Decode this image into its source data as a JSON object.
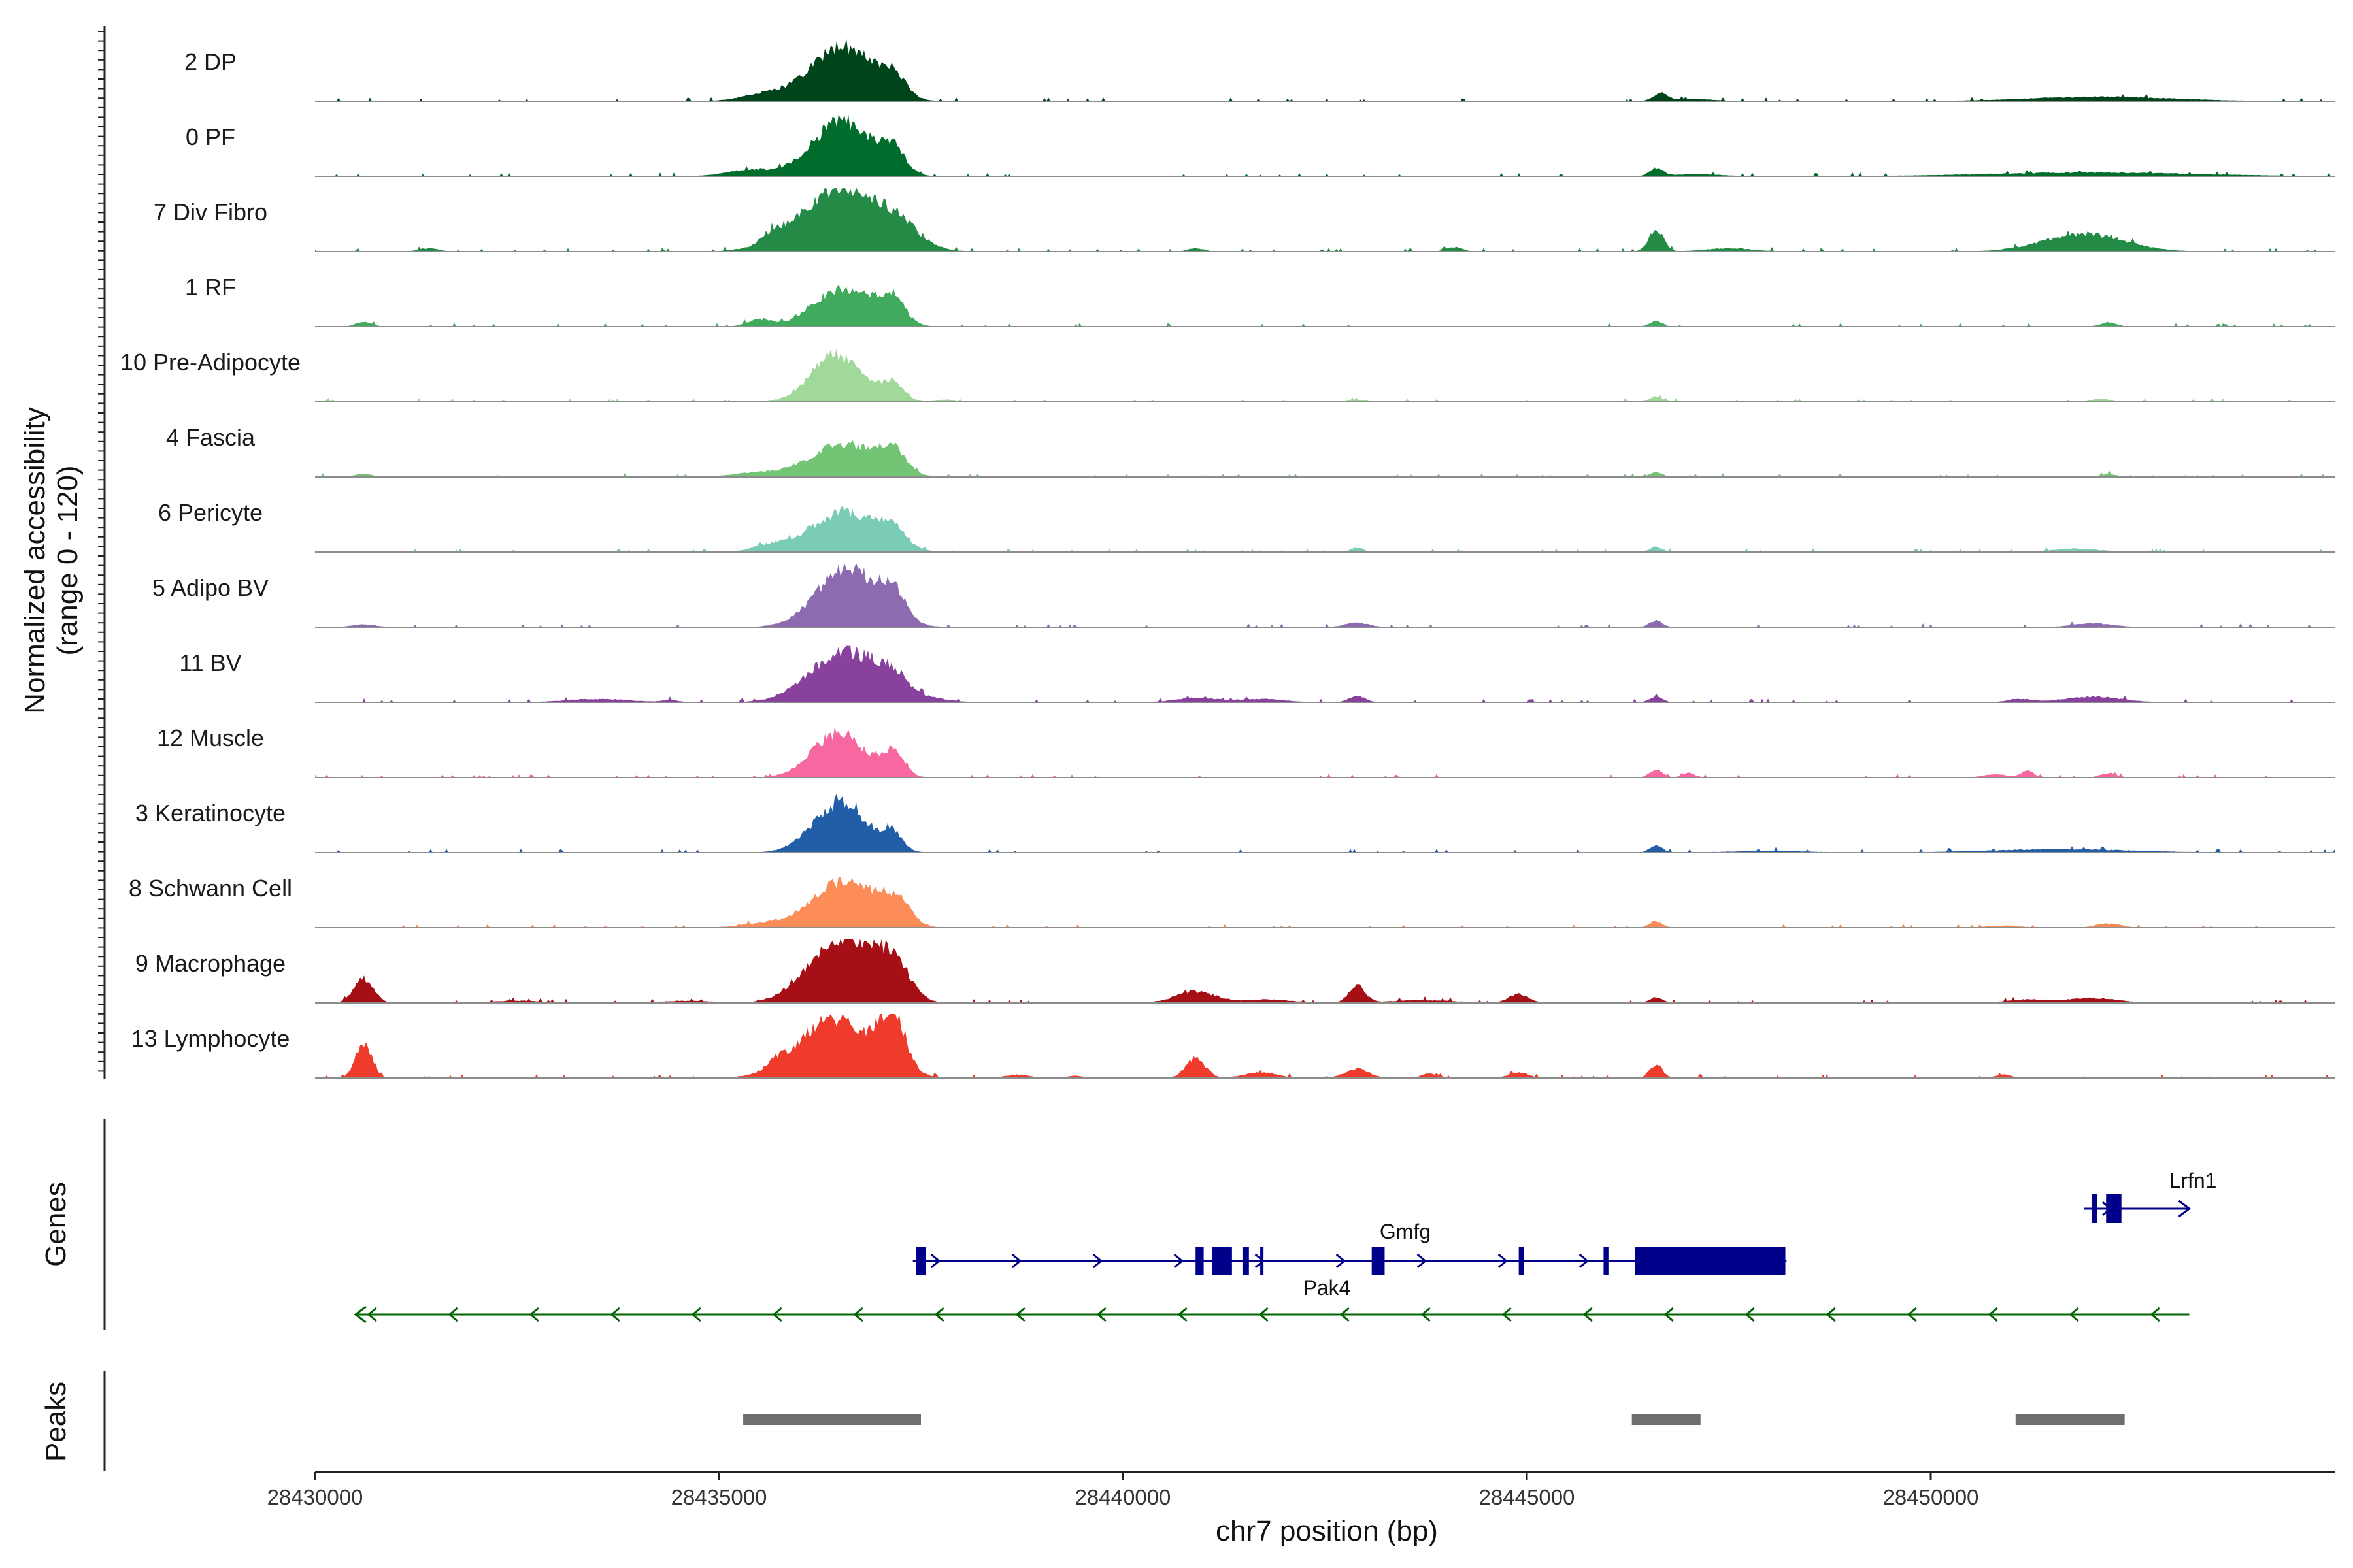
{
  "chart_data": {
    "type": "area",
    "chromosome": "chr7",
    "xlabel": "chr7 position (bp)",
    "ylabel_line1": "Normalized accessibility",
    "ylabel_line2": "(range 0 - 120)",
    "ylim": [
      0,
      120
    ],
    "xlim": [
      28430000,
      28455000
    ],
    "xticks": [
      28430000,
      28435000,
      28440000,
      28445000,
      28450000
    ],
    "xtick_labels": [
      "28430000",
      "28435000",
      "28440000",
      "28445000",
      "28450000"
    ],
    "tracks": [
      {
        "name": "2 DP",
        "color": "#00441B",
        "peaks": [
          [
            28436530,
            100,
            380
          ],
          [
            28437150,
            38,
            150
          ],
          [
            28435600,
            14,
            300
          ],
          [
            28446650,
            14,
            80
          ],
          [
            28452100,
            8,
            900
          ],
          [
            28447000,
            4,
            300
          ]
        ]
      },
      {
        "name": "0 PF",
        "color": "#006D2C",
        "peaks": [
          [
            28436520,
            100,
            360
          ],
          [
            28437150,
            42,
            150
          ],
          [
            28435400,
            12,
            300
          ],
          [
            28446600,
            14,
            80
          ],
          [
            28452000,
            7,
            1300
          ],
          [
            28447100,
            4,
            300
          ]
        ]
      },
      {
        "name": "7 Div Fibro",
        "color": "#238B45",
        "peaks": [
          [
            28436500,
            112,
            500
          ],
          [
            28437200,
            30,
            260
          ],
          [
            28446600,
            40,
            90
          ],
          [
            28451900,
            32,
            500
          ],
          [
            28435650,
            14,
            120
          ],
          [
            28431400,
            6,
            120
          ],
          [
            28440900,
            6,
            100
          ],
          [
            28444100,
            8,
            100
          ],
          [
            28447500,
            6,
            300
          ]
        ]
      },
      {
        "name": "1 RF",
        "color": "#41AB5D",
        "peaks": [
          [
            28436550,
            70,
            360
          ],
          [
            28437150,
            45,
            150
          ],
          [
            28435500,
            12,
            150
          ],
          [
            28430600,
            8,
            100
          ],
          [
            28446600,
            10,
            80
          ],
          [
            28452200,
            8,
            100
          ]
        ]
      },
      {
        "name": "10 Pre-Adipocyte",
        "color": "#A1D99B",
        "peaks": [
          [
            28436450,
            85,
            300
          ],
          [
            28437150,
            35,
            140
          ],
          [
            28446600,
            10,
            80
          ],
          [
            28452100,
            6,
            100
          ],
          [
            28442900,
            4,
            100
          ],
          [
            28437800,
            4,
            100
          ]
        ]
      },
      {
        "name": "4 Fascia",
        "color": "#74C476",
        "peaks": [
          [
            28436550,
            60,
            400
          ],
          [
            28437150,
            38,
            160
          ],
          [
            28435500,
            8,
            300
          ],
          [
            28430600,
            6,
            100
          ],
          [
            28446600,
            8,
            80
          ],
          [
            28452200,
            5,
            100
          ]
        ]
      },
      {
        "name": "6 Pericyte",
        "color": "#7BCCB7",
        "peaks": [
          [
            28436550,
            72,
            420
          ],
          [
            28437150,
            35,
            140
          ],
          [
            28435600,
            10,
            200
          ],
          [
            28442900,
            8,
            80
          ],
          [
            28446600,
            9,
            80
          ],
          [
            28451800,
            6,
            300
          ]
        ]
      },
      {
        "name": "5 Adipo BV",
        "color": "#8C6BB1",
        "peaks": [
          [
            28436600,
            105,
            380
          ],
          [
            28437150,
            45,
            150
          ],
          [
            28446600,
            12,
            80
          ],
          [
            28442900,
            8,
            150
          ],
          [
            28452000,
            7,
            250
          ],
          [
            28430600,
            5,
            150
          ]
        ]
      },
      {
        "name": "11 BV",
        "color": "#88419D",
        "peaks": [
          [
            28436550,
            92,
            420
          ],
          [
            28437150,
            32,
            200
          ],
          [
            28440900,
            8,
            250
          ],
          [
            28441700,
            6,
            300
          ],
          [
            28442900,
            12,
            100
          ],
          [
            28446600,
            10,
            80
          ],
          [
            28452000,
            10,
            350
          ],
          [
            28433500,
            6,
            400
          ],
          [
            28434400,
            4,
            100
          ],
          [
            28437700,
            5,
            200
          ],
          [
            28451100,
            6,
            150
          ]
        ]
      },
      {
        "name": "12 Muscle",
        "color": "#F768A1",
        "peaks": [
          [
            28436480,
            80,
            320
          ],
          [
            28437150,
            42,
            140
          ],
          [
            28446600,
            14,
            80
          ],
          [
            28447000,
            8,
            80
          ],
          [
            28450800,
            6,
            150
          ],
          [
            28451200,
            12,
            80
          ],
          [
            28452200,
            8,
            100
          ]
        ]
      },
      {
        "name": "3 Keratinocyte",
        "color": "#225EA8",
        "peaks": [
          [
            28436500,
            90,
            330
          ],
          [
            28437150,
            30,
            120
          ],
          [
            28446600,
            12,
            80
          ],
          [
            28451600,
            6,
            900
          ],
          [
            28448000,
            3,
            500
          ]
        ]
      },
      {
        "name": "8 Schwann Cell",
        "color": "#FC8D59",
        "peaks": [
          [
            28436550,
            85,
            380
          ],
          [
            28437200,
            40,
            170
          ],
          [
            28435600,
            8,
            300
          ],
          [
            28446600,
            12,
            80
          ],
          [
            28452200,
            8,
            150
          ],
          [
            28450900,
            4,
            200
          ]
        ]
      },
      {
        "name": "9 Macrophage",
        "color": "#A50F15",
        "peaks": [
          [
            28436520,
            112,
            380
          ],
          [
            28437150,
            68,
            200
          ],
          [
            28430600,
            44,
            120
          ],
          [
            28440900,
            20,
            250
          ],
          [
            28442900,
            30,
            100
          ],
          [
            28444900,
            16,
            120
          ],
          [
            28441800,
            6,
            300
          ],
          [
            28443700,
            5,
            400
          ],
          [
            28446600,
            10,
            80
          ],
          [
            28451200,
            6,
            250
          ],
          [
            28452000,
            9,
            300
          ],
          [
            28432500,
            4,
            300
          ],
          [
            28434600,
            4,
            300
          ],
          [
            28435900,
            6,
            200
          ]
        ]
      },
      {
        "name": "13 Lymphocyte",
        "color": "#EF3B2C",
        "peaks": [
          [
            28436450,
            108,
            450
          ],
          [
            28437150,
            95,
            150
          ],
          [
            28430600,
            62,
            100
          ],
          [
            28435700,
            12,
            100
          ],
          [
            28440900,
            35,
            120
          ],
          [
            28441700,
            10,
            200
          ],
          [
            28442900,
            16,
            150
          ],
          [
            28443800,
            8,
            100
          ],
          [
            28444900,
            10,
            120
          ],
          [
            28446600,
            24,
            80
          ],
          [
            28450900,
            6,
            100
          ],
          [
            28438700,
            6,
            150
          ],
          [
            28439400,
            4,
            100
          ]
        ]
      }
    ],
    "genes": [
      {
        "name": "Gmfg",
        "color": "#00008B",
        "strand": "+",
        "start": 28437400,
        "end": 28448200,
        "exons": [
          [
            28437440,
            28437560
          ],
          [
            28440900,
            28441000
          ],
          [
            28441100,
            28441350
          ],
          [
            28441480,
            28441560
          ],
          [
            28441700,
            28441730
          ],
          [
            28443080,
            28443240
          ],
          [
            28444900,
            28444960
          ],
          [
            28445950,
            28446010
          ],
          [
            28446340,
            28448200
          ]
        ]
      },
      {
        "name": "Pak4",
        "color": "#006400",
        "strand": "-",
        "start": 28430500,
        "end": 28453200,
        "exons": []
      },
      {
        "name": "Lrfn1",
        "color": "#00008B",
        "strand": "+",
        "start": 28451900,
        "end": 28453200,
        "exons": [
          [
            28451990,
            28452060
          ],
          [
            28452170,
            28452360
          ]
        ]
      }
    ],
    "peaks": [
      [
        28435300,
        28437500
      ],
      [
        28446300,
        28447150
      ],
      [
        28451050,
        28452400
      ]
    ],
    "side_labels": {
      "genes": "Genes",
      "peaks": "Peaks"
    }
  }
}
